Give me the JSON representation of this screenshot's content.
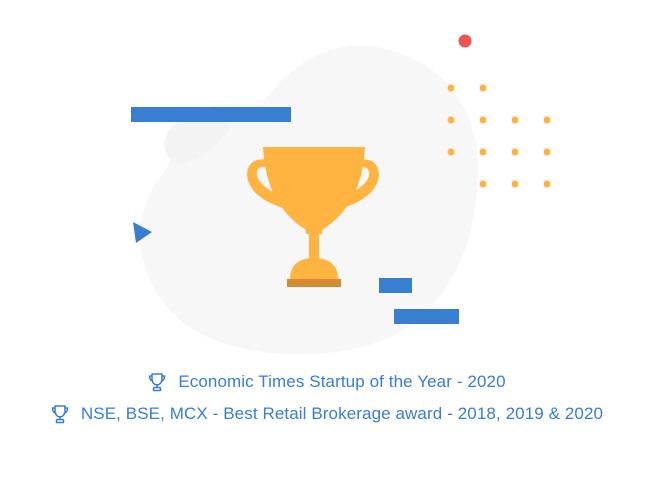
{
  "colors": {
    "blob": "#f7f7f7",
    "accent_blue": "#387ed1",
    "trophy_gold": "#ffb340",
    "trophy_base": "#d38c33",
    "dot_orange": "#ffb340",
    "dot_red": "#ef5350",
    "award_text": "#387ed1"
  },
  "awards": [
    {
      "icon": "trophy-outline-icon",
      "label": "Economic Times Startup of the Year - 2020"
    },
    {
      "icon": "trophy-outline-icon",
      "label": "NSE, BSE, MCX - Best Retail Brokerage award - 2018, 2019 & 2020"
    }
  ]
}
